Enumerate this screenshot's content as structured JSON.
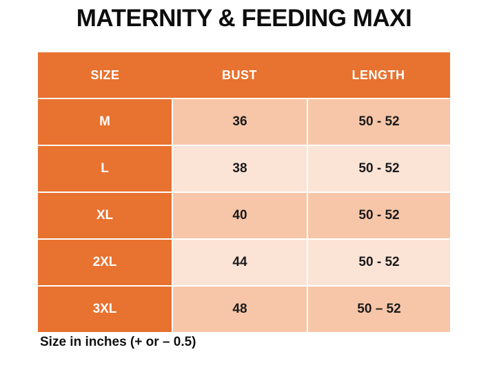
{
  "title": "MATERNITY & FEEDING MAXI",
  "colors": {
    "orange": "#E8722F",
    "band_dark": "#F7C6A9",
    "band_light": "#FBE3D6",
    "text_dark": "#1A1A1A",
    "white": "#FFFFFF"
  },
  "table": {
    "headers": {
      "size": "SIZE",
      "bust": "BUST",
      "length": "LENGTH"
    },
    "rows": [
      {
        "size": "M",
        "bust": "36",
        "length": "50 - 52"
      },
      {
        "size": "L",
        "bust": "38",
        "length": "50 - 52"
      },
      {
        "size": "XL",
        "bust": "40",
        "length": "50 - 52"
      },
      {
        "size": "2XL",
        "bust": "44",
        "length": "50 - 52"
      },
      {
        "size": "3XL",
        "bust": "48",
        "length": "50 – 52"
      }
    ]
  },
  "footnote": "Size in inches (+ or – 0.5)",
  "chart_data": {
    "type": "table",
    "title": "MATERNITY & FEEDING MAXI",
    "columns": [
      "SIZE",
      "BUST",
      "LENGTH"
    ],
    "rows": [
      [
        "M",
        "36",
        "50 - 52"
      ],
      [
        "L",
        "38",
        "50 - 52"
      ],
      [
        "XL",
        "40",
        "50 - 52"
      ],
      [
        "2XL",
        "44",
        "50 - 52"
      ],
      [
        "3XL",
        "48",
        "50 – 52"
      ]
    ],
    "units_note": "Size in inches (+ or – 0.5)",
    "layout": "orange header row and size column, alternating peach banded rows, white gridlines"
  }
}
